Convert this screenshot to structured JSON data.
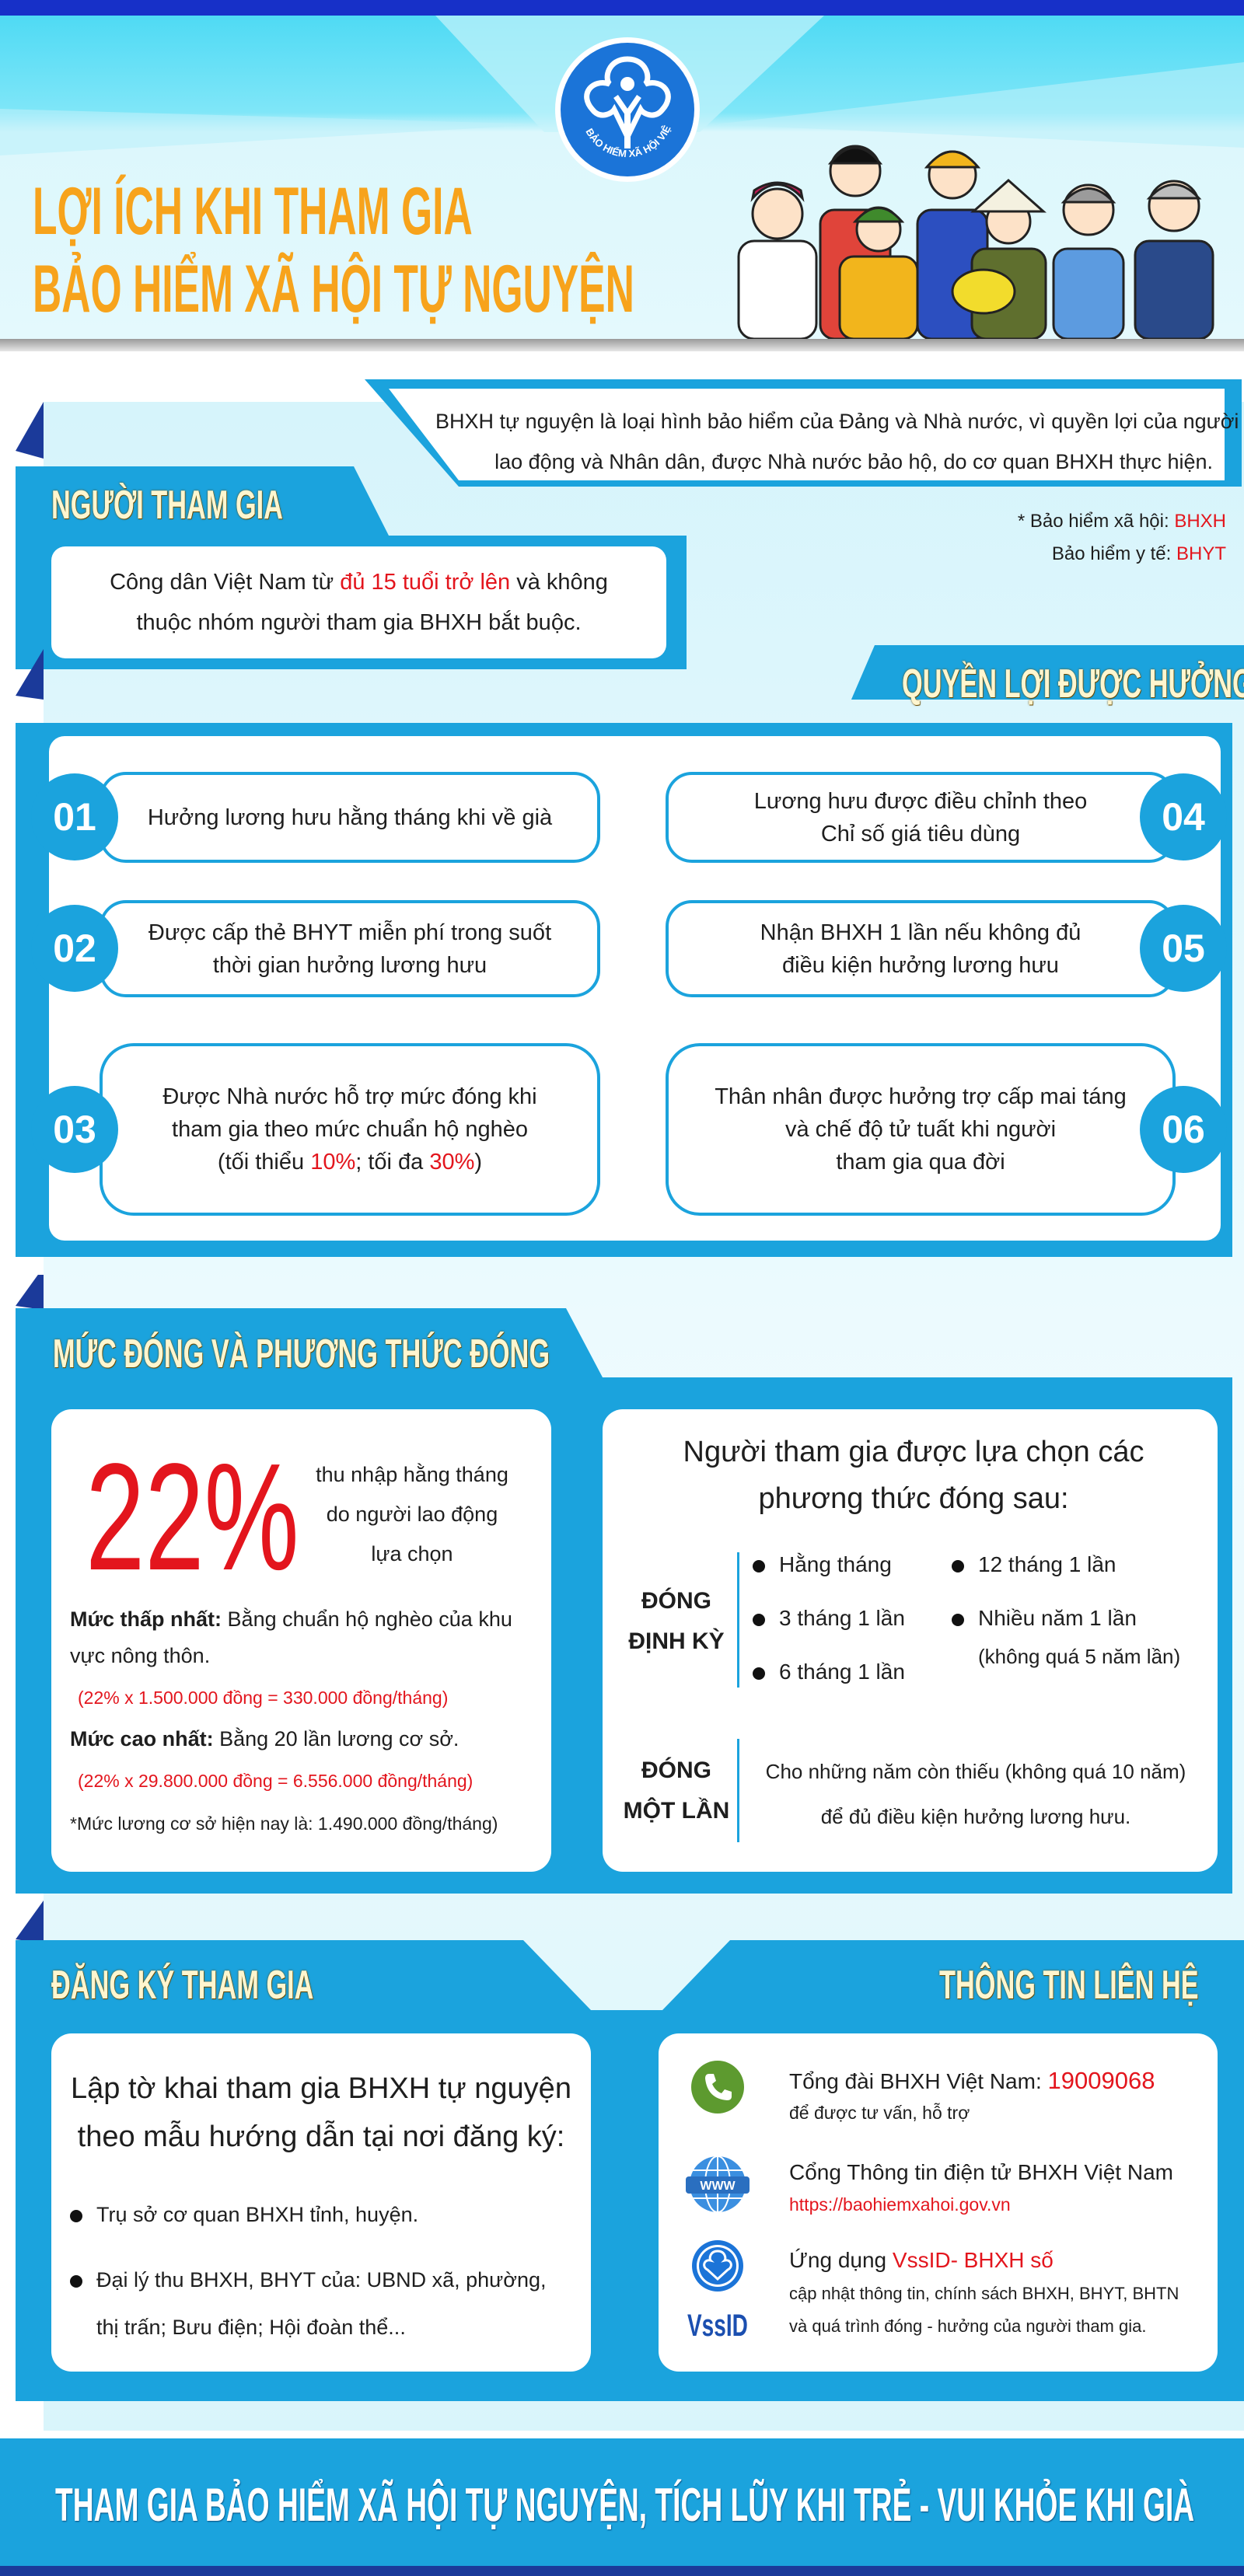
{
  "header": {
    "logo_text": "BẢO HIỂM XÃ HỘI VIỆT NAM",
    "title_line1": "LỢI ÍCH KHI THAM GIA",
    "title_line2": "BẢO HIỂM XÃ HỘI TỰ NGUYỆN"
  },
  "intro": {
    "line1": "BHXH tự nguyện là loại hình bảo hiểm của Đảng và Nhà nước, vì quyền lợi của người",
    "line2": "lao động và Nhân dân, được Nhà nước bảo hộ, do cơ quan BHXH thực hiện."
  },
  "participants": {
    "heading": "NGƯỜI THAM GIA",
    "text_before": "Công dân Việt Nam từ ",
    "highlight": "đủ 15 tuổi trở lên",
    "text_after": " và không thuộc nhóm người tham gia BHXH bắt buộc."
  },
  "abbreviations": [
    {
      "label": "* Bảo hiểm xã hội: ",
      "abbr": "BHXH"
    },
    {
      "label": "Bảo hiểm y tế: ",
      "abbr": "BHYT"
    }
  ],
  "benefits": {
    "heading": "QUYỀN LỢI ĐƯỢC HƯỞNG",
    "items": [
      {
        "number": "01",
        "line1": "Hưởng lương hưu hằng tháng khi về già"
      },
      {
        "number": "02",
        "line1": "Được cấp thẻ BHYT miễn phí trong suốt",
        "line2": "thời gian hưởng lương hưu"
      },
      {
        "number": "03",
        "line1": "Được Nhà nước hỗ trợ mức đóng khi",
        "line2": "tham gia theo mức chuẩn hộ nghèo",
        "p1": "(tối thiểu ",
        "r1": "10%",
        "p2": "; tối đa ",
        "r2": "30%",
        "p3": ")"
      },
      {
        "number": "04",
        "line1": "Lương hưu được điều chỉnh theo",
        "line2": "Chỉ số giá tiêu dùng"
      },
      {
        "number": "05",
        "line1": "Nhận BHXH 1 lần nếu không đủ",
        "line2": "điều kiện hưởng lương hưu"
      },
      {
        "number": "06",
        "line1": "Thân nhân được hưởng trợ cấp mai táng",
        "line2": "và chế độ tử tuất khi người",
        "line3": "tham gia qua đời"
      }
    ]
  },
  "contribution": {
    "heading": "MỨC ĐÓNG VÀ PHƯƠNG THỨC ĐÓNG",
    "rate": "22%",
    "rate_desc": [
      "thu nhập hằng tháng",
      "do người lao động",
      "lựa chọn"
    ],
    "min_label": "Mức thấp nhất:",
    "min_text": " Bằng chuẩn hộ nghèo của khu",
    "min_text2": "vực nông thôn.",
    "min_formula": "(22% x 1.500.000 đồng = 330.000 đồng/tháng)",
    "max_label": "Mức cao nhất:",
    "max_text": " Bằng 20 lần lương cơ sở.",
    "max_formula": "(22% x 29.800.000 đồng = 6.556.000 đồng/tháng)",
    "note": "*Mức lương cơ sở hiện nay là: 1.490.000 đồng/tháng)",
    "methods_title": [
      "Người tham gia được lựa chọn các",
      "phương thức đóng sau:"
    ],
    "periodic_label": [
      "ĐÓNG",
      "ĐỊNH KỲ"
    ],
    "periodic_options": [
      "Hằng tháng",
      "3 tháng 1 lần",
      "6 tháng 1 lần",
      "12 tháng 1 lần",
      "Nhiều năm 1 lần"
    ],
    "periodic_note": "(không quá 5 năm lần)",
    "lump_label": [
      "ĐÓNG",
      "MỘT LẦN"
    ],
    "lump_text": [
      "Cho những năm còn thiếu (không quá 10 năm)",
      "để đủ điều kiện hưởng lương hưu."
    ]
  },
  "registration": {
    "heading": "ĐĂNG KÝ THAM GIA",
    "title": [
      "Lập tờ khai tham gia BHXH tự nguyện",
      "theo mẫu hướng dẫn tại nơi đăng ký:"
    ],
    "places": [
      "Trụ sở cơ quan BHXH tỉnh, huyện.",
      "Đại lý thu BHXH, BHYT của: UBND xã, phường,"
    ],
    "places_cont": "thị trấn; Bưu điện; Hội đoàn thể..."
  },
  "contact": {
    "heading": "THÔNG TIN LIÊN HỆ",
    "hotline_label": "Tổng đài BHXH Việt Nam: ",
    "hotline": "19009068",
    "hotline_desc": "để được tư vấn, hỗ trợ",
    "portal_label": "Cổng Thông tin điện tử BHXH Việt Nam",
    "portal_url": "https://baohiemxahoi.gov.vn",
    "app_prefix": "Ứng dụng ",
    "app_name": "VssID- BHXH số",
    "app_desc1": "cập nhật thông tin, chính sách BHXH, BHYT, BHTN",
    "app_desc2": "và quá trình đóng - hưởng của người tham gia.",
    "app_logo_text": "VssID",
    "www_text": "WWW"
  },
  "footer": {
    "slogan": "THAM GIA BẢO HIỂM XÃ HỘI TỰ NGUYỆN, TÍCH LŨY KHI TRẺ - VUI KHỎE KHI GIÀ"
  },
  "colors": {
    "primary_blue": "#1ba3dd",
    "navy": "#1b3a9a",
    "title_orange": "#f7a31c",
    "highlight_red": "#e3151d"
  }
}
